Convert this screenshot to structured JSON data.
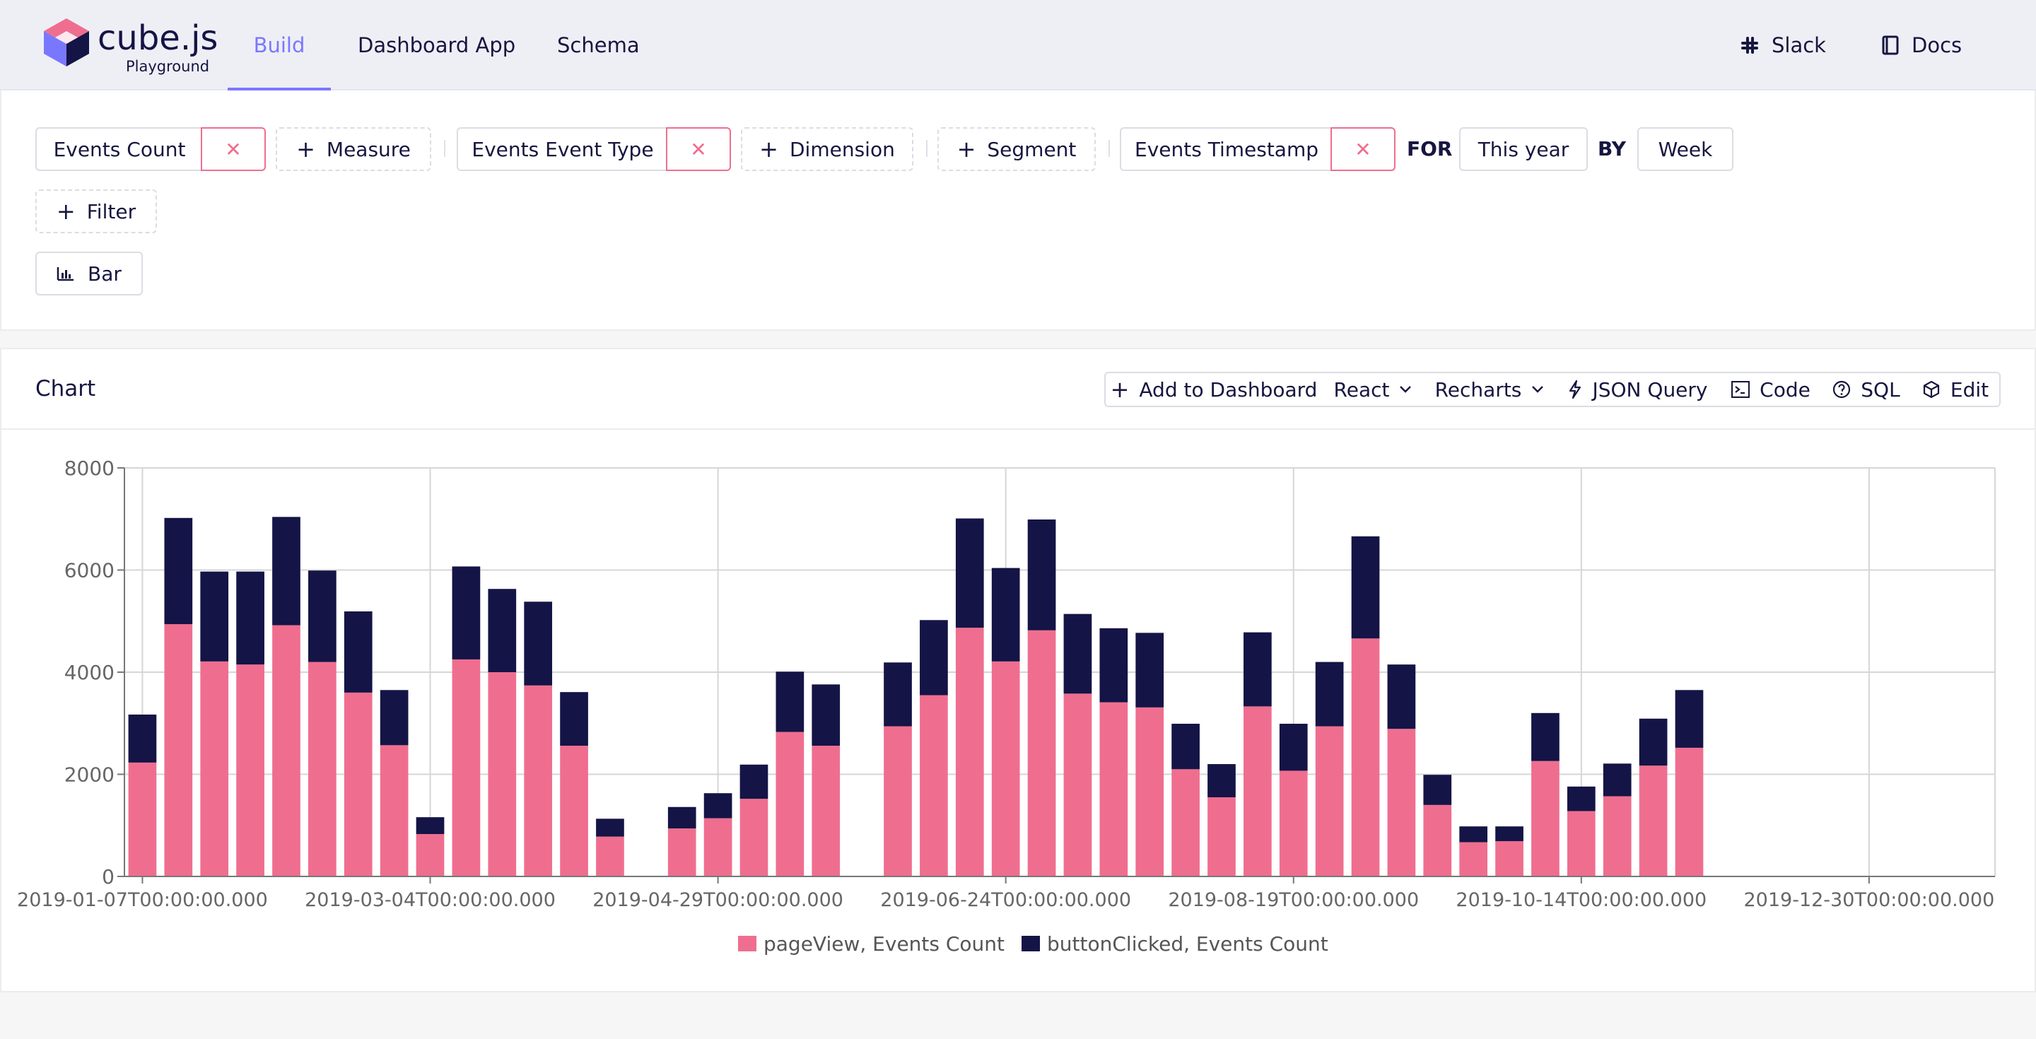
{
  "app": {
    "logo_name": "cube.js",
    "logo_sub": "Playground"
  },
  "nav": {
    "tabs": [
      {
        "label": "Build"
      },
      {
        "label": "Dashboard App"
      },
      {
        "label": "Schema"
      }
    ],
    "links": [
      {
        "label": "Slack",
        "icon": "slack-icon"
      },
      {
        "label": "Docs",
        "icon": "book-icon"
      }
    ]
  },
  "query": {
    "measure": {
      "value": "Events Count",
      "add_label": "Measure"
    },
    "dimension": {
      "value": "Events Event Type",
      "add_label": "Dimension"
    },
    "segment": {
      "add_label": "Segment"
    },
    "time": {
      "value": "Events Timestamp",
      "for_label": "FOR",
      "range": "This year",
      "by_label": "BY",
      "granularity": "Week"
    },
    "filter": {
      "add_label": "Filter"
    },
    "chart_type": "Bar",
    "remove_glyph": "✕",
    "plus_glyph": "+"
  },
  "chart_panel": {
    "title": "Chart",
    "toolbar": {
      "add_to_dashboard": "Add to Dashboard",
      "framework": "React",
      "library": "Recharts",
      "json_query": "JSON Query",
      "code": "Code",
      "sql": "SQL",
      "edit": "Edit"
    }
  },
  "colors": {
    "accent": "#7a77ff",
    "page_view": "#ef6e8f",
    "button_clicked": "#141446",
    "remove": "#ef6e8f"
  },
  "chart_data": {
    "type": "bar",
    "stacked": true,
    "ylim": [
      0,
      8000
    ],
    "yticks": [
      0,
      2000,
      4000,
      6000,
      8000
    ],
    "xticks": [
      "2019-01-07T00:00:00.000",
      "2019-03-04T00:00:00.000",
      "2019-04-29T00:00:00.000",
      "2019-06-24T00:00:00.000",
      "2019-08-19T00:00:00.000",
      "2019-10-14T00:00:00.000",
      "2019-12-30T00:00:00.000"
    ],
    "weeks_count": 52,
    "grid": true,
    "legend_position": "bottom",
    "series": [
      {
        "name": "pageView, Events Count",
        "color": "#ef6e8f",
        "values": [
          2230,
          4940,
          4210,
          4150,
          4920,
          4200,
          3600,
          2570,
          830,
          4250,
          4000,
          3740,
          2560,
          780,
          0,
          940,
          1140,
          1520,
          2830,
          2560,
          0,
          2940,
          3550,
          4870,
          4210,
          4820,
          3580,
          3410,
          3310,
          2100,
          1550,
          3330,
          2070,
          2940,
          4660,
          2890,
          1400,
          670,
          690,
          2260,
          1280,
          1570,
          2170,
          2520,
          0,
          0,
          0,
          0,
          0,
          0,
          0,
          0
        ]
      },
      {
        "name": "buttonClicked, Events Count",
        "color": "#141446",
        "values": [
          940,
          2080,
          1760,
          1820,
          2120,
          1790,
          1590,
          1080,
          330,
          1820,
          1630,
          1640,
          1050,
          350,
          0,
          420,
          490,
          670,
          1180,
          1200,
          0,
          1250,
          1470,
          2140,
          1830,
          2170,
          1560,
          1450,
          1460,
          890,
          650,
          1450,
          920,
          1260,
          2000,
          1260,
          590,
          310,
          290,
          940,
          480,
          640,
          920,
          1130,
          0,
          0,
          0,
          0,
          0,
          0,
          0,
          0
        ]
      }
    ]
  }
}
